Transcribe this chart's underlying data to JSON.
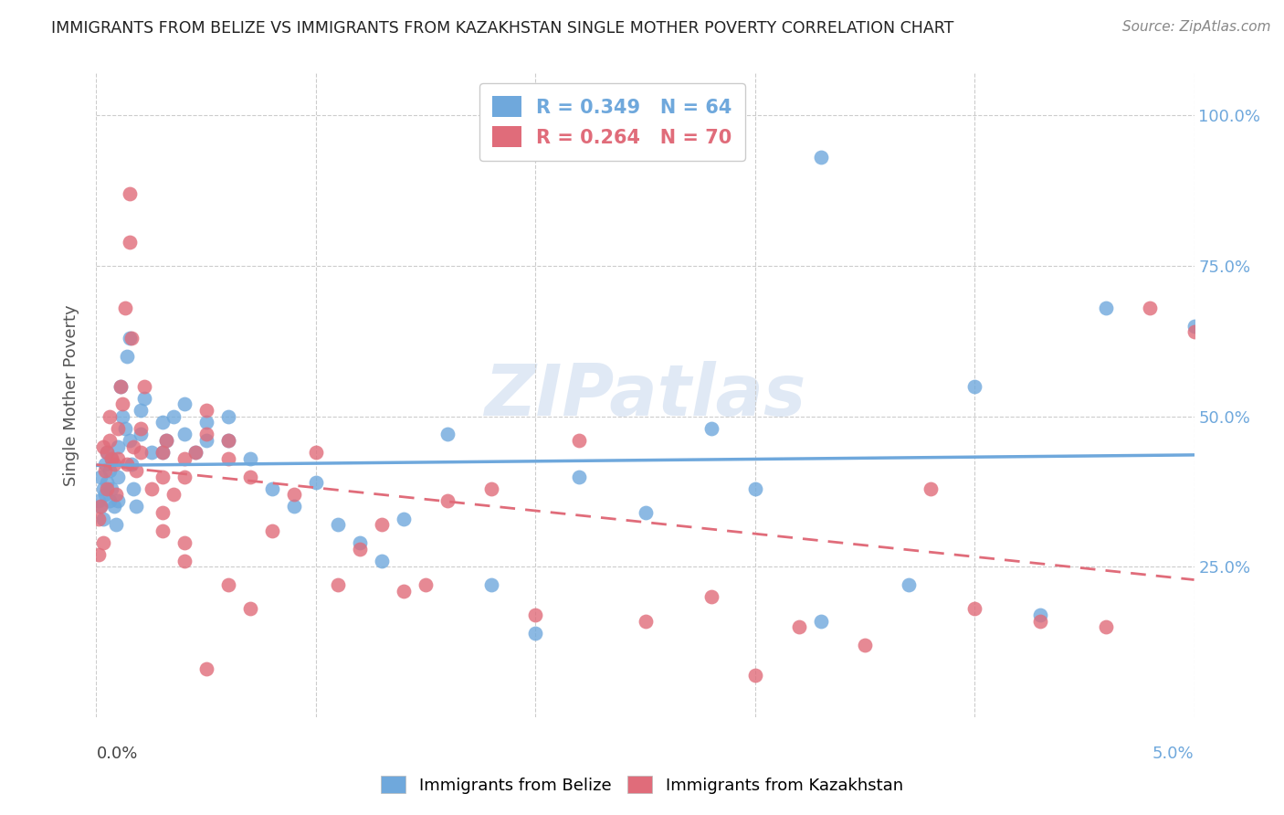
{
  "title": "IMMIGRANTS FROM BELIZE VS IMMIGRANTS FROM KAZAKHSTAN SINGLE MOTHER POVERTY CORRELATION CHART",
  "source": "Source: ZipAtlas.com",
  "ylabel": "Single Mother Poverty",
  "y_ticks": [
    0.25,
    0.5,
    0.75,
    1.0
  ],
  "y_tick_labels": [
    "25.0%",
    "50.0%",
    "75.0%",
    "100.0%"
  ],
  "xlim": [
    0.0,
    0.05
  ],
  "ylim": [
    0.0,
    1.07
  ],
  "belize_color": "#6fa8dc",
  "kazakhstan_color": "#e06c7a",
  "belize_R": 0.349,
  "belize_N": 64,
  "kazakhstan_R": 0.264,
  "kazakhstan_N": 70,
  "belize_label": "Immigrants from Belize",
  "kazakhstan_label": "Immigrants from Kazakhstan",
  "watermark": "ZIPatlas",
  "belize_x": [
    0.0001,
    0.0002,
    0.0002,
    0.0003,
    0.0003,
    0.0004,
    0.0004,
    0.0005,
    0.0005,
    0.0006,
    0.0006,
    0.0007,
    0.0007,
    0.0008,
    0.0009,
    0.001,
    0.001,
    0.001,
    0.0011,
    0.0012,
    0.0013,
    0.0014,
    0.0015,
    0.0015,
    0.0016,
    0.0017,
    0.0018,
    0.002,
    0.002,
    0.0022,
    0.0025,
    0.003,
    0.003,
    0.0032,
    0.0035,
    0.004,
    0.004,
    0.0045,
    0.005,
    0.005,
    0.006,
    0.006,
    0.007,
    0.008,
    0.009,
    0.01,
    0.011,
    0.012,
    0.013,
    0.014,
    0.016,
    0.018,
    0.02,
    0.022,
    0.025,
    0.028,
    0.03,
    0.033,
    0.037,
    0.04,
    0.043,
    0.046,
    0.05,
    0.033
  ],
  "belize_y": [
    0.36,
    0.4,
    0.35,
    0.38,
    0.33,
    0.42,
    0.37,
    0.44,
    0.39,
    0.41,
    0.36,
    0.43,
    0.38,
    0.35,
    0.32,
    0.45,
    0.4,
    0.36,
    0.55,
    0.5,
    0.48,
    0.6,
    0.63,
    0.46,
    0.42,
    0.38,
    0.35,
    0.51,
    0.47,
    0.53,
    0.44,
    0.49,
    0.44,
    0.46,
    0.5,
    0.52,
    0.47,
    0.44,
    0.49,
    0.46,
    0.5,
    0.46,
    0.43,
    0.38,
    0.35,
    0.39,
    0.32,
    0.29,
    0.26,
    0.33,
    0.47,
    0.22,
    0.14,
    0.4,
    0.34,
    0.48,
    0.38,
    0.16,
    0.22,
    0.55,
    0.17,
    0.68,
    0.65,
    0.93
  ],
  "kazakhstan_x": [
    0.0001,
    0.0001,
    0.0002,
    0.0003,
    0.0003,
    0.0004,
    0.0005,
    0.0005,
    0.0006,
    0.0006,
    0.0007,
    0.0008,
    0.0009,
    0.001,
    0.001,
    0.0011,
    0.0012,
    0.0013,
    0.0014,
    0.0015,
    0.0015,
    0.0016,
    0.0017,
    0.0018,
    0.002,
    0.002,
    0.0022,
    0.0025,
    0.003,
    0.003,
    0.0032,
    0.0035,
    0.004,
    0.004,
    0.0045,
    0.005,
    0.005,
    0.006,
    0.006,
    0.007,
    0.008,
    0.009,
    0.01,
    0.011,
    0.012,
    0.013,
    0.014,
    0.015,
    0.016,
    0.018,
    0.02,
    0.022,
    0.025,
    0.028,
    0.03,
    0.032,
    0.035,
    0.038,
    0.04,
    0.043,
    0.046,
    0.048,
    0.05,
    0.003,
    0.003,
    0.004,
    0.004,
    0.005,
    0.006,
    0.007
  ],
  "kazakhstan_y": [
    0.33,
    0.27,
    0.35,
    0.45,
    0.29,
    0.41,
    0.44,
    0.38,
    0.5,
    0.46,
    0.43,
    0.42,
    0.37,
    0.48,
    0.43,
    0.55,
    0.52,
    0.68,
    0.42,
    0.87,
    0.79,
    0.63,
    0.45,
    0.41,
    0.48,
    0.44,
    0.55,
    0.38,
    0.44,
    0.4,
    0.46,
    0.37,
    0.43,
    0.4,
    0.44,
    0.51,
    0.47,
    0.46,
    0.43,
    0.4,
    0.31,
    0.37,
    0.44,
    0.22,
    0.28,
    0.32,
    0.21,
    0.22,
    0.36,
    0.38,
    0.17,
    0.46,
    0.16,
    0.2,
    0.07,
    0.15,
    0.12,
    0.38,
    0.18,
    0.16,
    0.15,
    0.68,
    0.64,
    0.34,
    0.31,
    0.29,
    0.26,
    0.08,
    0.22,
    0.18
  ]
}
